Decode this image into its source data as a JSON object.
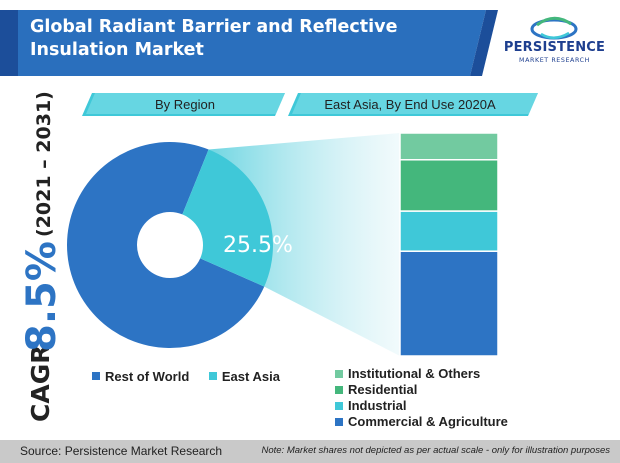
{
  "title": "Global Radiant Barrier and Reflective Insulation Market",
  "logo": {
    "name": "PERSISTENCE",
    "tagline": "MARKET RESEARCH"
  },
  "cagr": {
    "label": "CAGR",
    "value": "8.5%",
    "period": "(2021 – 2031)"
  },
  "colors": {
    "primary": "#2d74c4",
    "dark_blue": "#1c4e9a",
    "teal": "#3fc8d8",
    "green": "#44b77c",
    "light_green": "#72caa0",
    "header_bg": "#2a6fbd",
    "footer_bg": "#c9c9c9"
  },
  "chart_data": [
    {
      "type": "pie",
      "title": "By Region",
      "categories": [
        "Rest of World",
        "East Asia"
      ],
      "values": [
        74.5,
        25.5
      ],
      "data_labels": [
        "",
        "25.5%"
      ],
      "legend": "bottom"
    },
    {
      "type": "bar",
      "subtype": "stacked-100",
      "title": "East Asia, By End Use 2020A",
      "categories": [
        "Commercial & Agriculture",
        "Industrial",
        "Residential",
        "Institutional & Others"
      ],
      "values": [
        47,
        18,
        23,
        12
      ],
      "legend": "bottom"
    }
  ],
  "footer": {
    "source": "Source: Persistence Market Research",
    "note": "Note: Market shares not depicted as per actual scale - only for illustration purposes"
  }
}
